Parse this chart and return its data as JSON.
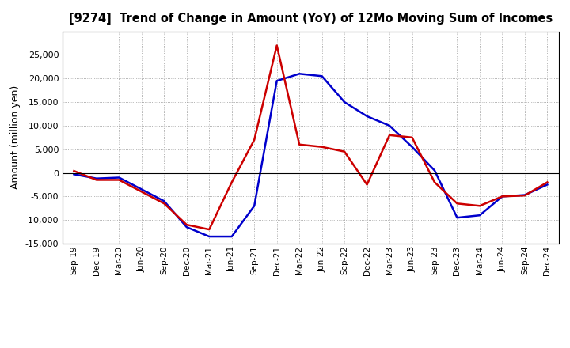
{
  "title": "[9274]  Trend of Change in Amount (YoY) of 12Mo Moving Sum of Incomes",
  "ylabel": "Amount (million yen)",
  "x_labels": [
    "Sep-19",
    "Dec-19",
    "Mar-20",
    "Jun-20",
    "Sep-20",
    "Dec-20",
    "Mar-21",
    "Jun-21",
    "Sep-21",
    "Dec-21",
    "Mar-22",
    "Jun-22",
    "Sep-22",
    "Dec-22",
    "Mar-23",
    "Jun-23",
    "Sep-23",
    "Dec-23",
    "Mar-24",
    "Jun-24",
    "Sep-24",
    "Dec-24"
  ],
  "ordinary_income": [
    -300,
    -1200,
    -1000,
    -3500,
    -6000,
    -11500,
    -13500,
    -13500,
    -7000,
    19500,
    21000,
    20500,
    15000,
    12000,
    10000,
    5500,
    500,
    -9500,
    -9000,
    -5000,
    -4700,
    -2500
  ],
  "net_income": [
    400,
    -1500,
    -1500,
    -4000,
    -6500,
    -11000,
    -12000,
    -2000,
    7000,
    27000,
    6000,
    5500,
    4500,
    -2500,
    8000,
    7500,
    -2000,
    -6500,
    -7000,
    -5000,
    -4800,
    -2000
  ],
  "ordinary_color": "#0000cc",
  "net_color": "#cc0000",
  "ylim": [
    -15000,
    30000
  ],
  "yticks": [
    -15000,
    -10000,
    -5000,
    0,
    5000,
    10000,
    15000,
    20000,
    25000
  ],
  "background_color": "#ffffff",
  "grid_color": "#999999",
  "line_width": 1.8
}
